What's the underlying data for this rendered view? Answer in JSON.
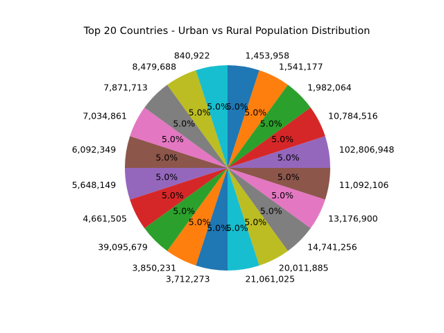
{
  "chart_data": {
    "type": "pie",
    "title": "Top 20 Countries - Urban vs Rural Population Distribution",
    "start_angle_deg": 90,
    "direction": "clockwise",
    "slices": [
      {
        "label": "1,453,958",
        "value": 5.0,
        "pct_label": "5.0%",
        "color": "#1f77b4"
      },
      {
        "label": "1,541,177",
        "value": 5.0,
        "pct_label": "5.0%",
        "color": "#ff7f0e"
      },
      {
        "label": "1,982,064",
        "value": 5.0,
        "pct_label": "5.0%",
        "color": "#2ca02c"
      },
      {
        "label": "10,784,516",
        "value": 5.0,
        "pct_label": "5.0%",
        "color": "#d62728"
      },
      {
        "label": "102,806,948",
        "value": 5.0,
        "pct_label": "5.0%",
        "color": "#9467bd"
      },
      {
        "label": "11,092,106",
        "value": 5.0,
        "pct_label": "5.0%",
        "color": "#8c564b"
      },
      {
        "label": "13,176,900",
        "value": 5.0,
        "pct_label": "5.0%",
        "color": "#e377c2"
      },
      {
        "label": "14,741,256",
        "value": 5.0,
        "pct_label": "5.0%",
        "color": "#7f7f7f"
      },
      {
        "label": "20,011,885",
        "value": 5.0,
        "pct_label": "5.0%",
        "color": "#bcbd22"
      },
      {
        "label": "21,061,025",
        "value": 5.0,
        "pct_label": "5.0%",
        "color": "#17becf"
      },
      {
        "label": "3,712,273",
        "value": 5.0,
        "pct_label": "5.0%",
        "color": "#1f77b4"
      },
      {
        "label": "3,850,231",
        "value": 5.0,
        "pct_label": "5.0%",
        "color": "#ff7f0e"
      },
      {
        "label": "39,095,679",
        "value": 5.0,
        "pct_label": "5.0%",
        "color": "#2ca02c"
      },
      {
        "label": "4,661,505",
        "value": 5.0,
        "pct_label": "5.0%",
        "color": "#d62728"
      },
      {
        "label": "5,648,149",
        "value": 5.0,
        "pct_label": "5.0%",
        "color": "#9467bd"
      },
      {
        "label": "6,092,349",
        "value": 5.0,
        "pct_label": "5.0%",
        "color": "#8c564b"
      },
      {
        "label": "7,034,861",
        "value": 5.0,
        "pct_label": "5.0%",
        "color": "#e377c2"
      },
      {
        "label": "7,871,713",
        "value": 5.0,
        "pct_label": "5.0%",
        "color": "#7f7f7f"
      },
      {
        "label": "8,479,688",
        "value": 5.0,
        "pct_label": "5.0%",
        "color": "#bcbd22"
      },
      {
        "label": "840,922",
        "value": 5.0,
        "pct_label": "5.0%",
        "color": "#17becf"
      }
    ]
  }
}
